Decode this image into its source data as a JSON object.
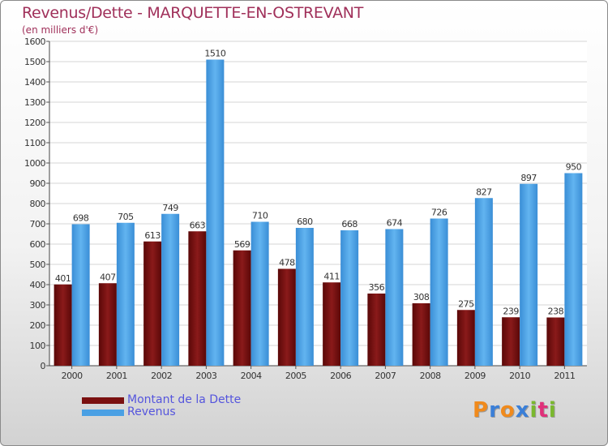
{
  "chart_data": {
    "type": "bar",
    "title": "Revenus/Dette - MARQUETTE-EN-OSTREVANT",
    "subtitle": "(en milliers d'€)",
    "categories": [
      "2000",
      "2001",
      "2002",
      "2003",
      "2004",
      "2005",
      "2006",
      "2007",
      "2008",
      "2009",
      "2010",
      "2011"
    ],
    "series": [
      {
        "name": "Montant de la Dette",
        "color": "#7a1010",
        "values": [
          401,
          407,
          613,
          663,
          569,
          478,
          411,
          356,
          308,
          275,
          239,
          238
        ]
      },
      {
        "name": "Revenus",
        "color": "#4aa0e4",
        "values": [
          698,
          705,
          749,
          1510,
          710,
          680,
          668,
          674,
          726,
          827,
          897,
          950
        ]
      }
    ],
    "ylim": [
      0,
      1600
    ],
    "yticks": [
      0,
      100,
      200,
      300,
      400,
      500,
      600,
      700,
      800,
      900,
      1000,
      1100,
      1200,
      1300,
      1400,
      1500,
      1600
    ],
    "grid": true,
    "legend": "bottom-left"
  },
  "logo": {
    "letters": [
      "P",
      "r",
      "o",
      "x",
      "i",
      "t",
      "i"
    ],
    "colors": [
      "#f08a1c",
      "#3a7fd8",
      "#f08a1c",
      "#3a7fd8",
      "#7ab82e",
      "#e0307a",
      "#7ab82e"
    ]
  }
}
